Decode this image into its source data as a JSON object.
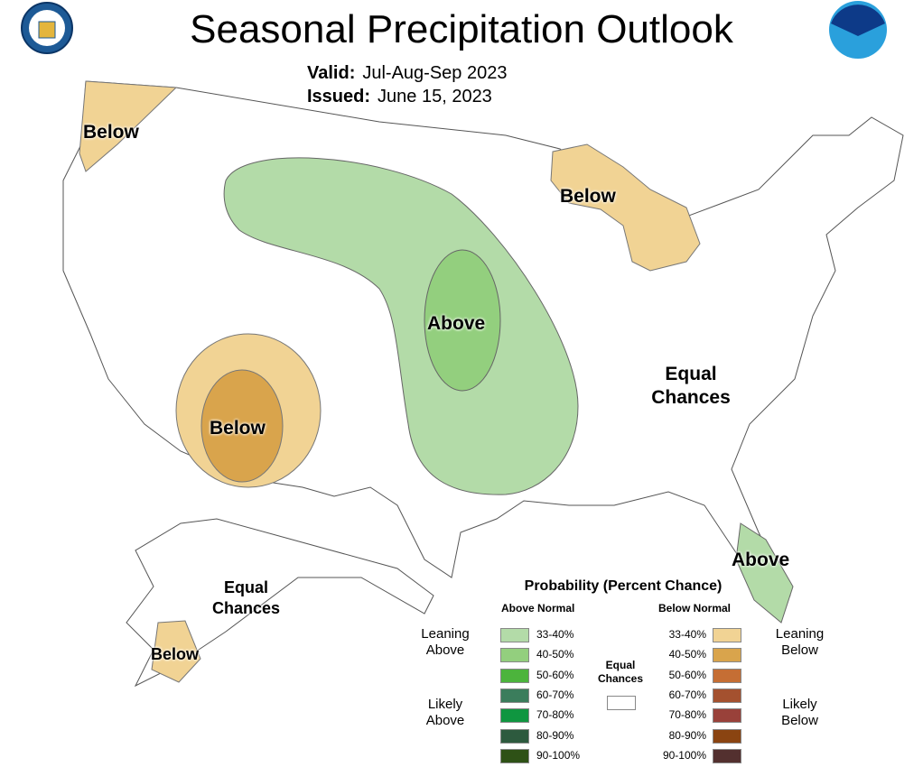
{
  "header": {
    "title": "Seasonal Precipitation Outlook",
    "valid_label": "Valid:",
    "valid_value": "Jul-Aug-Sep 2023",
    "issued_label": "Issued:",
    "issued_value": "June 15, 2023",
    "logo_left": "Department of Commerce seal",
    "logo_right": "NOAA"
  },
  "map_labels": {
    "nw": "Below",
    "mich": "Below",
    "central": "Above",
    "sw": "Below",
    "east_1": "Equal",
    "east_2": "Chances",
    "fl": "Above",
    "ak_1": "Equal",
    "ak_2": "Chances",
    "ak_below": "Below"
  },
  "legend": {
    "title": "Probability (Percent Chance)",
    "above_header": "Above Normal",
    "below_header": "Below Normal",
    "equal_1": "Equal",
    "equal_2": "Chances",
    "leaning_above_1": "Leaning",
    "leaning_above_2": "Above",
    "likely_above_1": "Likely",
    "likely_above_2": "Above",
    "leaning_below_1": "Leaning",
    "leaning_below_2": "Below",
    "likely_below_1": "Likely",
    "likely_below_2": "Below",
    "above": [
      {
        "range": "33-40%",
        "color": "#b3dba8"
      },
      {
        "range": "40-50%",
        "color": "#93cf7e"
      },
      {
        "range": "50-60%",
        "color": "#4cb43c"
      },
      {
        "range": "60-70%",
        "color": "#3b7d5c"
      },
      {
        "range": "70-80%",
        "color": "#0f9640"
      },
      {
        "range": "80-90%",
        "color": "#2d5a3e"
      },
      {
        "range": "90-100%",
        "color": "#2e5116"
      }
    ],
    "below": [
      {
        "range": "33-40%",
        "color": "#f1d394"
      },
      {
        "range": "40-50%",
        "color": "#d9a44c"
      },
      {
        "range": "50-60%",
        "color": "#c56e34"
      },
      {
        "range": "60-70%",
        "color": "#a4512f"
      },
      {
        "range": "70-80%",
        "color": "#99413a"
      },
      {
        "range": "80-90%",
        "color": "#8a4411"
      },
      {
        "range": "90-100%",
        "color": "#53302f"
      }
    ]
  }
}
